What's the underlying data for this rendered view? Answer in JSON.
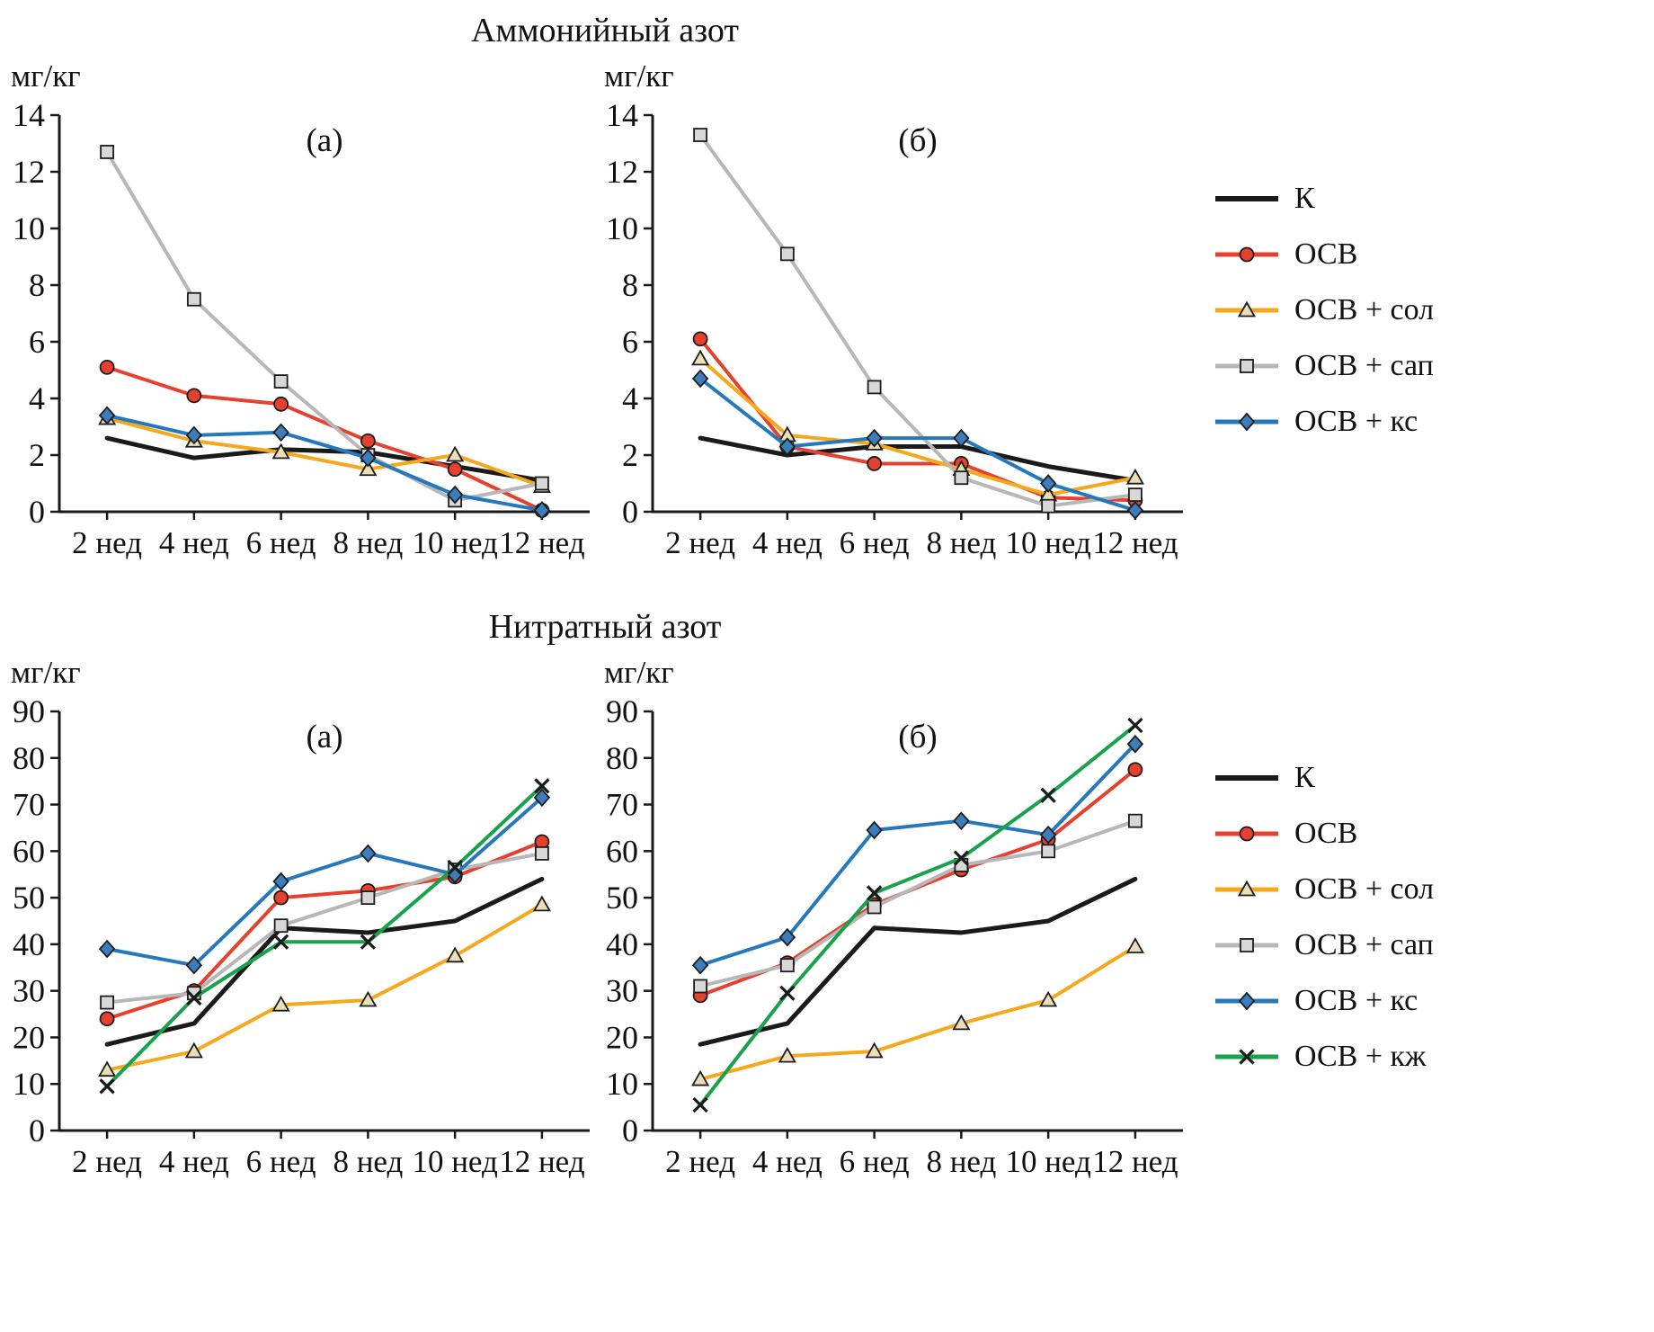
{
  "figure": {
    "top_title": "Аммонийный азот",
    "bottom_title": "Нитратный азот",
    "y_unit": "мг/кг"
  },
  "legend_top": [
    "К",
    "ОСВ",
    "ОСВ + сол",
    "ОСВ + сап",
    "ОСВ + кс"
  ],
  "legend_bottom": [
    "К",
    "ОСВ",
    "ОСВ + сол",
    "ОСВ + сап",
    "ОСВ + кс",
    "ОСВ + кж"
  ],
  "series_styles": {
    "К": {
      "key": "k",
      "color": "#1a1a1a",
      "marker": "none",
      "marker_fill": "#1a1a1a",
      "width": 5
    },
    "ОСВ": {
      "key": "osv",
      "color": "#e6402f",
      "marker": "circle",
      "marker_fill": "#e6402f",
      "width": 4
    },
    "ОСВ + сол": {
      "key": "osv-sol",
      "color": "#f6a81c",
      "marker": "triangle",
      "marker_fill": "#eadfb6",
      "width": 4
    },
    "ОСВ + сап": {
      "key": "osv-sap",
      "color": "#b7b7b7",
      "marker": "square",
      "marker_fill": "#d8d8d8",
      "width": 4
    },
    "ОСВ + кс": {
      "key": "osv-ks",
      "color": "#2678bd",
      "marker": "diamond",
      "marker_fill": "#3c7ebc",
      "width": 4
    },
    "ОСВ + кж": {
      "key": "osv-kzh",
      "color": "#17a24b",
      "marker": "xcross",
      "marker_fill": "#1a1a1a",
      "width": 4
    }
  },
  "chart_data": [
    {
      "id": "ammonium-a",
      "type": "line",
      "group_title": "Аммонийный азот",
      "panel_label": "(а)",
      "xlabel": "",
      "ylabel": "мг/кг",
      "ylim": [
        0,
        14
      ],
      "ytick_step": 2,
      "grid": false,
      "legend_position": "right",
      "categories": [
        "2 нед",
        "4 нед",
        "6 нед",
        "8 нед",
        "10 нед",
        "12 нед"
      ],
      "series": [
        {
          "name": "К",
          "values": [
            2.6,
            1.9,
            2.2,
            2.1,
            1.6,
            1.1
          ]
        },
        {
          "name": "ОСВ",
          "values": [
            5.1,
            4.1,
            3.8,
            2.5,
            1.5,
            0.05
          ]
        },
        {
          "name": "ОСВ + сол",
          "values": [
            3.3,
            2.5,
            2.1,
            1.5,
            2.0,
            0.9
          ]
        },
        {
          "name": "ОСВ + сап",
          "values": [
            12.7,
            7.5,
            4.6,
            2.0,
            0.4,
            1.0
          ]
        },
        {
          "name": "ОСВ + кс",
          "values": [
            3.4,
            2.7,
            2.8,
            1.9,
            0.6,
            0.05
          ]
        }
      ]
    },
    {
      "id": "ammonium-b",
      "type": "line",
      "group_title": "Аммонийный азот",
      "panel_label": "(б)",
      "xlabel": "",
      "ylabel": "мг/кг",
      "ylim": [
        0,
        14
      ],
      "ytick_step": 2,
      "grid": false,
      "legend_position": "right",
      "categories": [
        "2 нед",
        "4 нед",
        "6 нед",
        "8 нед",
        "10 нед",
        "12 нед"
      ],
      "series": [
        {
          "name": "К",
          "values": [
            2.6,
            2.0,
            2.3,
            2.3,
            1.6,
            1.1
          ]
        },
        {
          "name": "ОСВ",
          "values": [
            6.1,
            2.3,
            1.7,
            1.7,
            0.5,
            0.4
          ]
        },
        {
          "name": "ОСВ + сол",
          "values": [
            5.4,
            2.7,
            2.4,
            1.5,
            0.6,
            1.2
          ]
        },
        {
          "name": "ОСВ + сап",
          "values": [
            13.3,
            9.1,
            4.4,
            1.2,
            0.2,
            0.6
          ]
        },
        {
          "name": "ОСВ + кс",
          "values": [
            4.7,
            2.3,
            2.6,
            2.6,
            1.0,
            0.05
          ]
        }
      ]
    },
    {
      "id": "nitrate-a",
      "type": "line",
      "group_title": "Нитратный азот",
      "panel_label": "(а)",
      "xlabel": "",
      "ylabel": "мг/кг",
      "ylim": [
        0,
        90
      ],
      "ytick_step": 10,
      "grid": false,
      "legend_position": "right",
      "categories": [
        "2 нед",
        "4 нед",
        "6 нед",
        "8 нед",
        "10 нед",
        "12 нед"
      ],
      "series": [
        {
          "name": "К",
          "values": [
            18.5,
            23,
            43.5,
            42.5,
            45,
            54
          ]
        },
        {
          "name": "ОСВ",
          "values": [
            24,
            30,
            50,
            51.5,
            54.5,
            62
          ]
        },
        {
          "name": "ОСВ + сол",
          "values": [
            13,
            17,
            27,
            28,
            37.5,
            48.5
          ]
        },
        {
          "name": "ОСВ + сап",
          "values": [
            27.5,
            29.5,
            44,
            50,
            56,
            59.5
          ]
        },
        {
          "name": "ОСВ + кс",
          "values": [
            39,
            35.5,
            53.5,
            59.5,
            55,
            71.5
          ]
        },
        {
          "name": "ОСВ + кж",
          "values": [
            9.5,
            28.5,
            40.5,
            40.5,
            56.5,
            74
          ]
        }
      ]
    },
    {
      "id": "nitrate-b",
      "type": "line",
      "group_title": "Нитратный азот",
      "panel_label": "(б)",
      "xlabel": "",
      "ylabel": "мг/кг",
      "ylim": [
        0,
        90
      ],
      "ytick_step": 10,
      "grid": false,
      "legend_position": "right",
      "categories": [
        "2 нед",
        "4 нед",
        "6 нед",
        "8 нед",
        "10 нед",
        "12 нед"
      ],
      "series": [
        {
          "name": "К",
          "values": [
            18.5,
            23,
            43.5,
            42.5,
            45,
            54
          ]
        },
        {
          "name": "ОСВ",
          "values": [
            29,
            36,
            48.5,
            56,
            62.5,
            77.5
          ]
        },
        {
          "name": "ОСВ + сол",
          "values": [
            11,
            16,
            17,
            23,
            28,
            39.5
          ]
        },
        {
          "name": "ОСВ + сап",
          "values": [
            31,
            35.5,
            48,
            57,
            60,
            66.5
          ]
        },
        {
          "name": "ОСВ + кс",
          "values": [
            35.5,
            41.5,
            64.5,
            66.5,
            63.5,
            83
          ]
        },
        {
          "name": "ОСВ + кж",
          "values": [
            5.5,
            29.5,
            51,
            58.5,
            72,
            87
          ]
        }
      ]
    }
  ]
}
